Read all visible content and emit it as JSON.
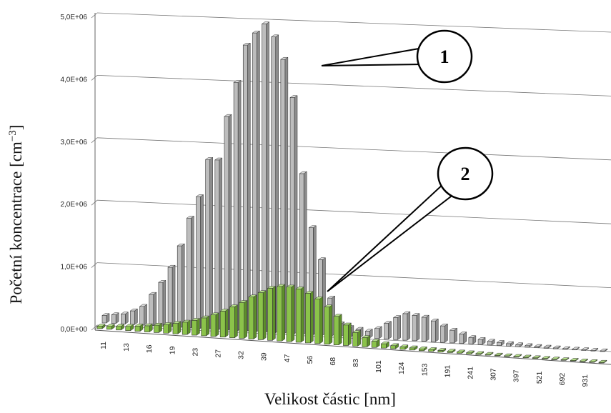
{
  "chart_data": {
    "type": "bar",
    "title": "",
    "ylabel": "Početní koncentrace [cm",
    "ylabel_exp": "−3",
    "ylabel_close": "]",
    "xlabel": "Velikost částic [nm]",
    "ylim": [
      0,
      5000000
    ],
    "y_ticks": [
      "0,0E+00",
      "1,0E+06",
      "2,0E+06",
      "3,0E+06",
      "4,0E+06",
      "5,0E+06"
    ],
    "x_tick_labels": [
      "11",
      "13",
      "16",
      "19",
      "23",
      "27",
      "32",
      "39",
      "47",
      "56",
      "68",
      "83",
      "101",
      "124",
      "153",
      "191",
      "241",
      "307",
      "397",
      "521",
      "692",
      "931"
    ],
    "series": [
      {
        "name": "1",
        "color": "#a9a9a9",
        "values": [
          120000,
          140000,
          160000,
          220000,
          300000,
          500000,
          700000,
          950000,
          1300000,
          1750000,
          2100000,
          2700000,
          2700000,
          3400000,
          3950000,
          4550000,
          4750000,
          4900000,
          4700000,
          4350000,
          3750000,
          2550000,
          1700000,
          1200000,
          600000,
          200000,
          150000,
          130000,
          110000,
          160000,
          250000,
          350000,
          420000,
          400000,
          380000,
          330000,
          260000,
          200000,
          150000,
          100000,
          80000,
          60000,
          50000,
          40000,
          30000,
          25000,
          20000,
          18000,
          15000,
          12000,
          10000,
          8000,
          6000,
          5000
        ]
      },
      {
        "name": "2",
        "color": "#8bc34a",
        "values": [
          40000,
          50000,
          60000,
          70000,
          85000,
          100000,
          120000,
          140000,
          170000,
          200000,
          240000,
          290000,
          350000,
          420000,
          500000,
          580000,
          680000,
          760000,
          840000,
          880000,
          880000,
          860000,
          800000,
          720000,
          600000,
          460000,
          330000,
          220000,
          150000,
          100000,
          70000,
          50000,
          40000,
          35000,
          30000,
          28000,
          25000,
          22000,
          20000,
          18000,
          16000,
          14000,
          12000,
          10000,
          9000,
          8000,
          7000,
          6000,
          5000,
          4000,
          3000,
          2500,
          2000,
          1500
        ]
      }
    ],
    "annotations": [
      "1",
      "2"
    ],
    "grid": true,
    "legend": "none"
  }
}
